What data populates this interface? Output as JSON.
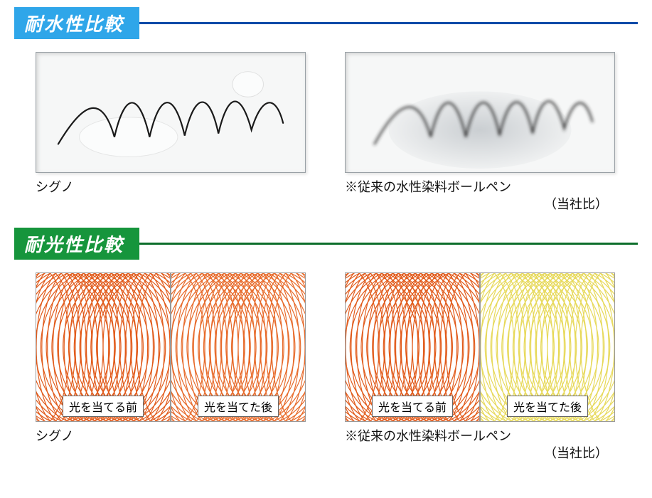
{
  "sections": {
    "water": {
      "title": "耐水性比較",
      "heading_bg": "#2fa6e9",
      "rule_color": "#0a4aa8",
      "left": {
        "caption": "シグノ",
        "stroke_color": "#1a1a1a",
        "stroke_width": 2.2,
        "blurred": false
      },
      "right": {
        "caption_line1": "※従来の水性染料ボールペン",
        "caption_line2": "（当社比）",
        "stroke_color": "#2b2b2b",
        "stroke_width": 2.4,
        "blurred": true
      }
    },
    "light": {
      "title": "耐光性比較",
      "heading_bg": "#16953c",
      "rule_color": "#0d6e2b",
      "left": {
        "caption": "シグノ",
        "before_label": "光を当てる前",
        "after_label": "光を当てた後",
        "before_color": "#e15a1a",
        "after_color": "#e76a2a"
      },
      "right": {
        "caption_line1": "※従来の水性染料ボールペン",
        "caption_line2": "（当社比）",
        "before_label": "光を当てる前",
        "after_label": "光を当てた後",
        "before_color": "#e15a1a",
        "after_color": "#e7d95a"
      },
      "mesh": {
        "line_width": 1.2,
        "arc_count": 24
      }
    }
  }
}
